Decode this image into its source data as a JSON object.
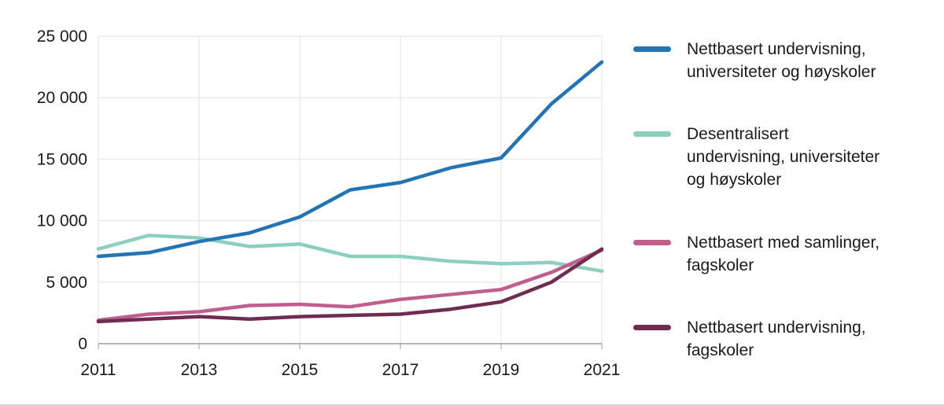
{
  "chart_data": {
    "type": "line",
    "x": [
      2011,
      2012,
      2013,
      2014,
      2015,
      2016,
      2017,
      2018,
      2019,
      2020,
      2021
    ],
    "series": [
      {
        "name": "Nettbasert undervisning, universiteter og høyskoler",
        "color": "#2274b5",
        "values": [
          7100,
          7400,
          8300,
          9000,
          10300,
          12500,
          13100,
          14300,
          15100,
          19500,
          22900
        ]
      },
      {
        "name": "Desentralisert undervisning, universiteter og høyskoler",
        "color": "#8bd0bf",
        "values": [
          7700,
          8800,
          8600,
          7900,
          8100,
          7100,
          7100,
          6700,
          6500,
          6600,
          5900
        ]
      },
      {
        "name": "Nettbasert med samlinger, fagskoler",
        "color": "#c05f8e",
        "values": [
          1900,
          2400,
          2600,
          3100,
          3200,
          3000,
          3600,
          4000,
          4400,
          5800,
          7600
        ]
      },
      {
        "name": "Nettbasert undervisning, fagskoler",
        "color": "#6f2b50",
        "values": [
          1800,
          2000,
          2200,
          2000,
          2200,
          2300,
          2400,
          2800,
          3400,
          5000,
          7700
        ]
      }
    ],
    "draw_order": [
      1,
      2,
      3,
      0
    ],
    "ylim": [
      0,
      25000
    ],
    "yticks": [
      0,
      5000,
      10000,
      15000,
      20000,
      25000
    ],
    "ytick_labels": [
      "0",
      "5 000",
      "10 000",
      "15 000",
      "20 000",
      "25 000"
    ],
    "xticks": [
      2011,
      2013,
      2015,
      2017,
      2019,
      2021
    ],
    "xtick_labels": [
      "2011",
      "2013",
      "2015",
      "2017",
      "2019",
      "2021"
    ],
    "grid": true,
    "legend_position": "right",
    "style": {
      "grid_color": "#e2e2e2",
      "axis_color": "#9e9e9e",
      "text_color": "#1a1a1a"
    }
  },
  "legend": {
    "items": [
      {
        "label": "Nettbasert undervisning,\nuniversiteter og høyskoler",
        "color": "#2274b5"
      },
      {
        "label": "Desentralisert\nundervisning, universiteter\nog høyskoler",
        "color": "#8bd0bf"
      },
      {
        "label": "Nettbasert med samlinger,\nfagskoler",
        "color": "#c05f8e"
      },
      {
        "label": "Nettbasert undervisning,\nfagskoler",
        "color": "#6f2b50"
      }
    ]
  }
}
